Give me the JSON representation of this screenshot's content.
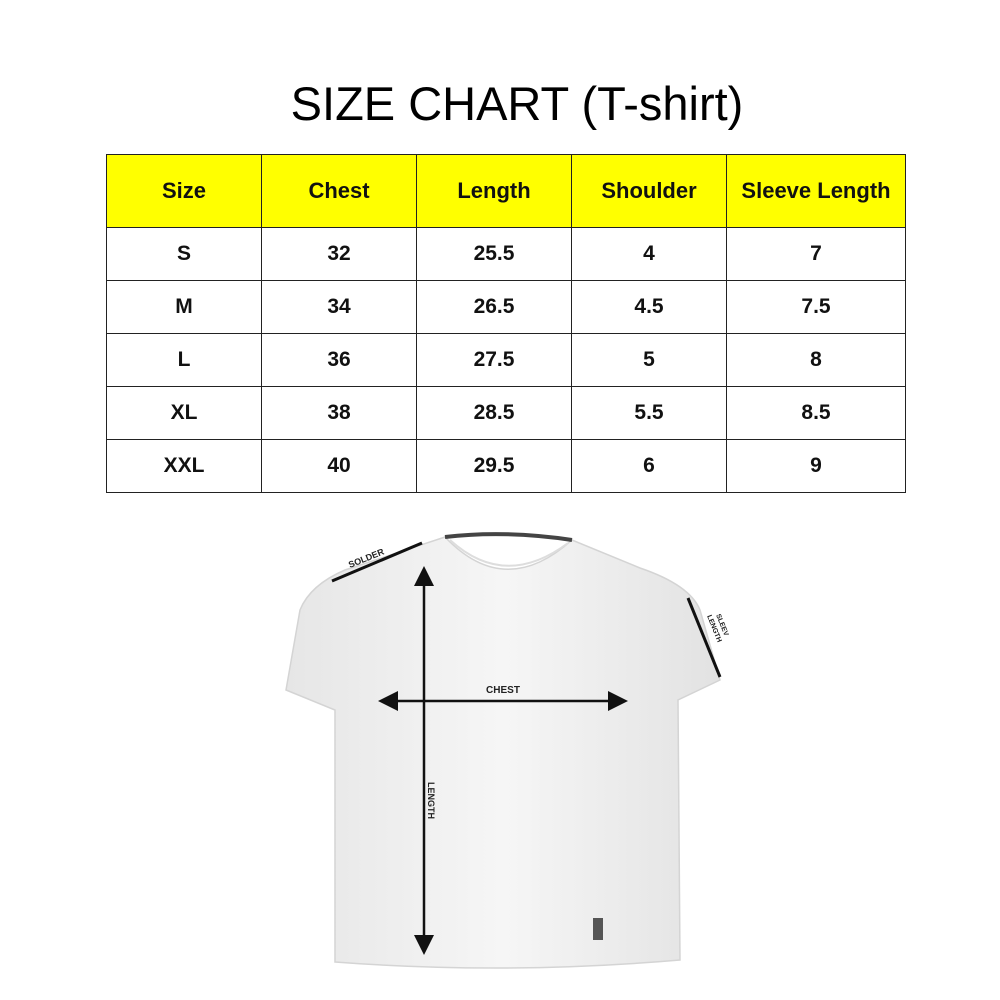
{
  "title": "SIZE CHART (T-shirt)",
  "table": {
    "headers": [
      "Size",
      "Chest",
      "Length",
      "Shoulder",
      "Sleeve Length"
    ],
    "header_color": "#ffff00",
    "rows": [
      [
        "S",
        "32",
        "25.5",
        "4",
        "7"
      ],
      [
        "M",
        "34",
        "26.5",
        "4.5",
        "7.5"
      ],
      [
        "L",
        "36",
        "27.5",
        "5",
        "8"
      ],
      [
        "XL",
        "38",
        "28.5",
        "5.5",
        "8.5"
      ],
      [
        "XXL",
        "40",
        "29.5",
        "6",
        "9"
      ]
    ]
  },
  "diagram": {
    "labels": {
      "shoulder": "SOLDER",
      "sleeve_1": "SLEEV",
      "sleeve_2": "LENGTH",
      "chest": "CHEST",
      "length": "LENGTH"
    }
  }
}
